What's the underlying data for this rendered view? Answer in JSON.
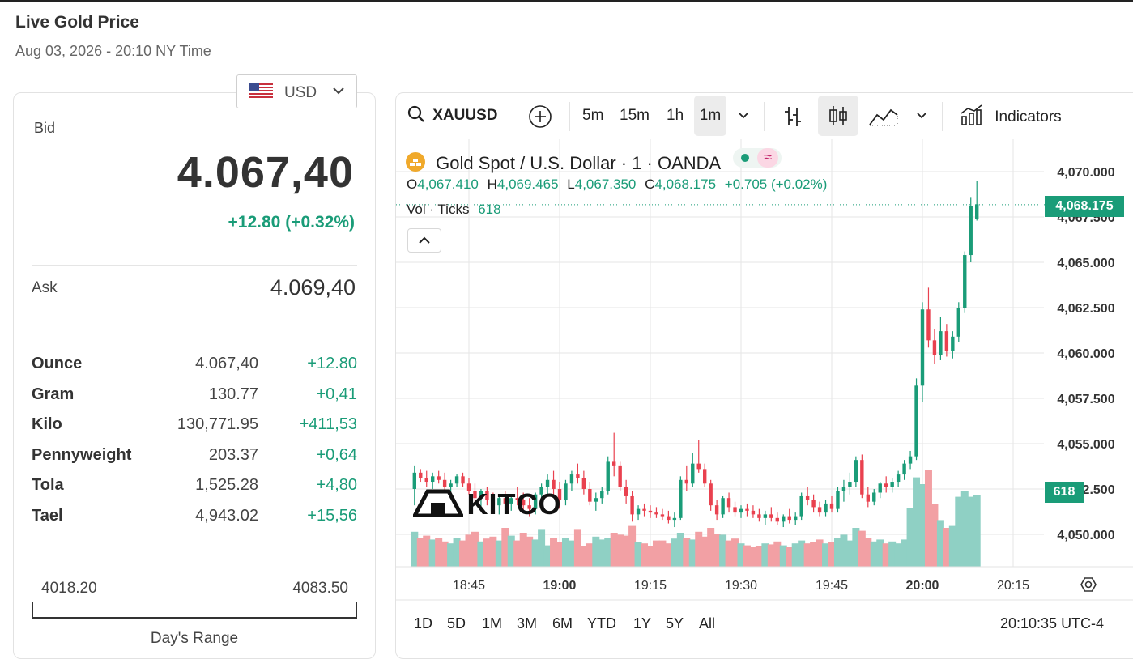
{
  "page": {
    "title": "Live Gold Price",
    "subtitle": "Aug 03, 2026 - 20:10 NY Time"
  },
  "currency": {
    "selected": "USD",
    "flag_icon": "us-flag-icon"
  },
  "quote": {
    "bid_label": "Bid",
    "bid_value": "4.067,40",
    "bid_change": "+12.80 (+0.32%)",
    "ask_label": "Ask",
    "ask_value": "4.069,40"
  },
  "units": [
    {
      "unit": "Ounce",
      "price": "4.067,40",
      "change": "+12.80"
    },
    {
      "unit": "Gram",
      "price": "130.77",
      "change": "+0,41"
    },
    {
      "unit": "Kilo",
      "price": "130,771.95",
      "change": "+411,53"
    },
    {
      "unit": "Pennyweight",
      "price": "203.37",
      "change": "+0,64"
    },
    {
      "unit": "Tola",
      "price": "1,525.28",
      "change": "+4,80"
    },
    {
      "unit": "Tael",
      "price": "4,943.02",
      "change": "+15,56"
    }
  ],
  "day_range": {
    "low": "4018.20",
    "high": "4083.50",
    "label": "Day's Range"
  },
  "toolbar": {
    "symbol": "XAUUSD",
    "intervals": [
      "5m",
      "15m",
      "1h",
      "1m"
    ],
    "active_interval": "1m",
    "indicators_label": "Indicators"
  },
  "chart_header": {
    "name": "Gold Spot / U.S. Dollar · 1 · OANDA",
    "o_label": "O",
    "o": "4,067.410",
    "h_label": "H",
    "h": "4,069.465",
    "l_label": "L",
    "l": "4,067.350",
    "c_label": "C",
    "c": "4,068.175",
    "change": "+0.705 (+0.02%)",
    "vol_label": "Vol · Ticks",
    "vol": "618"
  },
  "watermark": "KITCO",
  "bottom": {
    "ranges": [
      "1D",
      "5D",
      "1M",
      "3M",
      "6M",
      "YTD",
      "1Y",
      "5Y",
      "All"
    ],
    "clock": "20:10:35 UTC-4"
  },
  "colors": {
    "up": "#1a9c78",
    "down": "#e9414f",
    "vol_up": "#8fd0c4",
    "vol_down": "#f2a0a4"
  },
  "chart_data": {
    "type": "candlestick",
    "y_ticks": [
      "4,070.000",
      "4,067.500",
      "4,065.000",
      "4,062.500",
      "4,060.000",
      "4,057.500",
      "4,055.000",
      "4,052.500",
      "4,050.000"
    ],
    "y_range": [
      4048.5,
      4072.5
    ],
    "x_ticks": [
      "18:45",
      "19:00",
      "19:15",
      "19:30",
      "19:45",
      "20:00",
      "20:15"
    ],
    "bold_x_ticks": [
      "19:00",
      "20:00"
    ],
    "x_range_minutes": [
      "18:34",
      "20:24"
    ],
    "last_price_label": "4,068.175",
    "last_price": 4068.175,
    "last_volume_label": "618",
    "candles": [
      [
        4052.5,
        4053.8,
        4051.6,
        4053.4,
        36
      ],
      [
        4053.4,
        4053.6,
        4052.9,
        4053.1,
        30
      ],
      [
        4053.1,
        4053.5,
        4052.6,
        4052.9,
        32
      ],
      [
        4052.9,
        4053.4,
        4052.5,
        4053.2,
        28
      ],
      [
        4053.2,
        4053.5,
        4052.8,
        4053.0,
        30
      ],
      [
        4053.0,
        4053.4,
        4052.4,
        4052.6,
        26
      ],
      [
        4052.6,
        4053.0,
        4052.2,
        4052.8,
        24
      ],
      [
        4052.8,
        4053.3,
        4052.6,
        4053.2,
        30
      ],
      [
        4053.2,
        4053.4,
        4052.6,
        4052.8,
        27
      ],
      [
        4052.8,
        4053.1,
        4052.2,
        4052.4,
        33
      ],
      [
        4052.4,
        4052.8,
        4051.8,
        4052.0,
        36
      ],
      [
        4052.0,
        4052.5,
        4051.5,
        4052.4,
        26
      ],
      [
        4052.4,
        4052.6,
        4051.6,
        4051.9,
        29
      ],
      [
        4051.9,
        4052.3,
        4051.2,
        4051.6,
        31
      ],
      [
        4051.6,
        4052.2,
        4051.1,
        4052.0,
        27
      ],
      [
        4052.0,
        4052.4,
        4051.4,
        4051.7,
        40
      ],
      [
        4051.7,
        4052.2,
        4051.3,
        4052.0,
        32
      ],
      [
        4052.0,
        4052.6,
        4051.6,
        4051.9,
        27
      ],
      [
        4051.9,
        4052.3,
        4051.3,
        4051.6,
        35
      ],
      [
        4051.6,
        4052.0,
        4051.0,
        4051.4,
        31
      ],
      [
        4051.4,
        4052.3,
        4051.1,
        4052.2,
        28
      ],
      [
        4052.2,
        4052.8,
        4051.8,
        4052.6,
        38
      ],
      [
        4052.6,
        4053.3,
        4052.2,
        4053.0,
        22
      ],
      [
        4053.0,
        4053.5,
        4052.2,
        4052.5,
        30
      ],
      [
        4052.5,
        4052.9,
        4051.4,
        4051.9,
        25
      ],
      [
        4051.9,
        4053.0,
        4051.6,
        4052.8,
        30
      ],
      [
        4052.8,
        4053.5,
        4052.4,
        4053.3,
        27
      ],
      [
        4053.3,
        4053.9,
        4052.8,
        4053.1,
        38
      ],
      [
        4053.1,
        4053.5,
        4052.2,
        4052.5,
        21
      ],
      [
        4052.5,
        4052.9,
        4051.6,
        4051.8,
        24
      ],
      [
        4051.8,
        4052.3,
        4051.3,
        4052.0,
        31
      ],
      [
        4052.0,
        4052.6,
        4051.7,
        4052.4,
        28
      ],
      [
        4052.4,
        4054.3,
        4052.2,
        4054.0,
        30
      ],
      [
        4054.0,
        4055.6,
        4053.2,
        4053.8,
        35
      ],
      [
        4053.8,
        4054.0,
        4052.4,
        4052.6,
        33
      ],
      [
        4052.6,
        4053.0,
        4051.7,
        4052.1,
        32
      ],
      [
        4052.1,
        4052.4,
        4050.7,
        4051.1,
        42
      ],
      [
        4051.1,
        4051.6,
        4050.8,
        4051.4,
        25
      ],
      [
        4051.4,
        4051.7,
        4051.0,
        4051.3,
        24
      ],
      [
        4051.3,
        4051.6,
        4050.9,
        4051.2,
        21
      ],
      [
        4051.2,
        4051.5,
        4050.9,
        4051.1,
        27
      ],
      [
        4051.1,
        4051.4,
        4050.8,
        4051.0,
        27
      ],
      [
        4051.0,
        4051.3,
        4050.6,
        4050.8,
        24
      ],
      [
        4050.8,
        4051.2,
        4050.4,
        4050.9,
        29
      ],
      [
        4050.9,
        4053.2,
        4050.8,
        4053.0,
        35
      ],
      [
        4053.0,
        4053.8,
        4052.4,
        4052.8,
        30
      ],
      [
        4052.8,
        4054.5,
        4052.6,
        4053.9,
        28
      ],
      [
        4053.9,
        4055.2,
        4053.4,
        4053.6,
        36
      ],
      [
        4053.6,
        4053.9,
        4052.6,
        4052.8,
        31
      ],
      [
        4052.8,
        4053.0,
        4051.3,
        4051.6,
        40
      ],
      [
        4051.6,
        4051.9,
        4050.8,
        4051.1,
        34
      ],
      [
        4051.1,
        4052.1,
        4050.9,
        4052.0,
        33
      ],
      [
        4052.0,
        4052.3,
        4051.2,
        4051.5,
        27
      ],
      [
        4051.5,
        4051.8,
        4051.0,
        4051.2,
        29
      ],
      [
        4051.2,
        4051.6,
        4050.9,
        4051.4,
        24
      ],
      [
        4051.4,
        4051.7,
        4051.0,
        4051.3,
        22
      ],
      [
        4051.3,
        4051.6,
        4050.9,
        4051.1,
        20
      ],
      [
        4051.1,
        4051.4,
        4050.7,
        4050.9,
        21
      ],
      [
        4050.9,
        4051.3,
        4050.5,
        4051.1,
        24
      ],
      [
        4051.1,
        4051.5,
        4050.7,
        4050.9,
        23
      ],
      [
        4050.9,
        4051.2,
        4050.5,
        4050.7,
        26
      ],
      [
        4050.7,
        4051.1,
        4050.4,
        4051.0,
        22
      ],
      [
        4051.0,
        4051.4,
        4050.6,
        4050.8,
        20
      ],
      [
        4050.8,
        4051.2,
        4050.5,
        4051.0,
        24
      ],
      [
        4051.0,
        4052.3,
        4050.8,
        4052.1,
        27
      ],
      [
        4052.1,
        4052.6,
        4051.6,
        4051.9,
        24
      ],
      [
        4051.9,
        4052.2,
        4051.2,
        4051.5,
        25
      ],
      [
        4051.5,
        4051.8,
        4051.0,
        4051.2,
        28
      ],
      [
        4051.2,
        4051.9,
        4051.0,
        4051.7,
        24
      ],
      [
        4051.7,
        4052.1,
        4051.2,
        4051.4,
        25
      ],
      [
        4051.4,
        4052.6,
        4051.2,
        4052.4,
        30
      ],
      [
        4052.4,
        4053.0,
        4051.8,
        4052.6,
        33
      ],
      [
        4052.6,
        4053.4,
        4052.2,
        4052.9,
        27
      ],
      [
        4052.9,
        4054.3,
        4052.6,
        4054.1,
        40
      ],
      [
        4054.1,
        4054.4,
        4052.0,
        4052.2,
        37
      ],
      [
        4052.2,
        4052.6,
        4051.5,
        4051.8,
        30
      ],
      [
        4051.8,
        4052.5,
        4051.6,
        4052.3,
        26
      ],
      [
        4052.3,
        4052.9,
        4052.0,
        4052.8,
        28
      ],
      [
        4052.8,
        4053.2,
        4052.3,
        4052.6,
        24
      ],
      [
        4052.6,
        4053.1,
        4052.3,
        4052.9,
        26
      ],
      [
        4052.9,
        4053.5,
        4052.6,
        4053.3,
        24
      ],
      [
        4053.3,
        4054.1,
        4053.0,
        4053.9,
        28
      ],
      [
        4053.9,
        4054.6,
        4053.6,
        4054.3,
        60
      ],
      [
        4054.3,
        4058.6,
        4054.1,
        4058.2,
        92
      ],
      [
        4058.2,
        4062.8,
        4057.3,
        4062.4,
        85
      ],
      [
        4062.4,
        4063.6,
        4060.3,
        4060.7,
        100
      ],
      [
        4060.7,
        4061.3,
        4059.4,
        4059.9,
        65
      ],
      [
        4059.9,
        4062.0,
        4059.6,
        4061.2,
        48
      ],
      [
        4061.2,
        4061.6,
        4059.8,
        4060.1,
        40
      ],
      [
        4060.1,
        4061.2,
        4059.7,
        4060.9,
        42
      ],
      [
        4060.9,
        4062.8,
        4060.6,
        4062.5,
        72
      ],
      [
        4062.5,
        4065.6,
        4062.2,
        4065.4,
        78
      ],
      [
        4065.4,
        4068.6,
        4065.0,
        4068.1,
        72
      ],
      [
        4067.4,
        4069.5,
        4067.3,
        4068.2,
        74
      ]
    ]
  }
}
